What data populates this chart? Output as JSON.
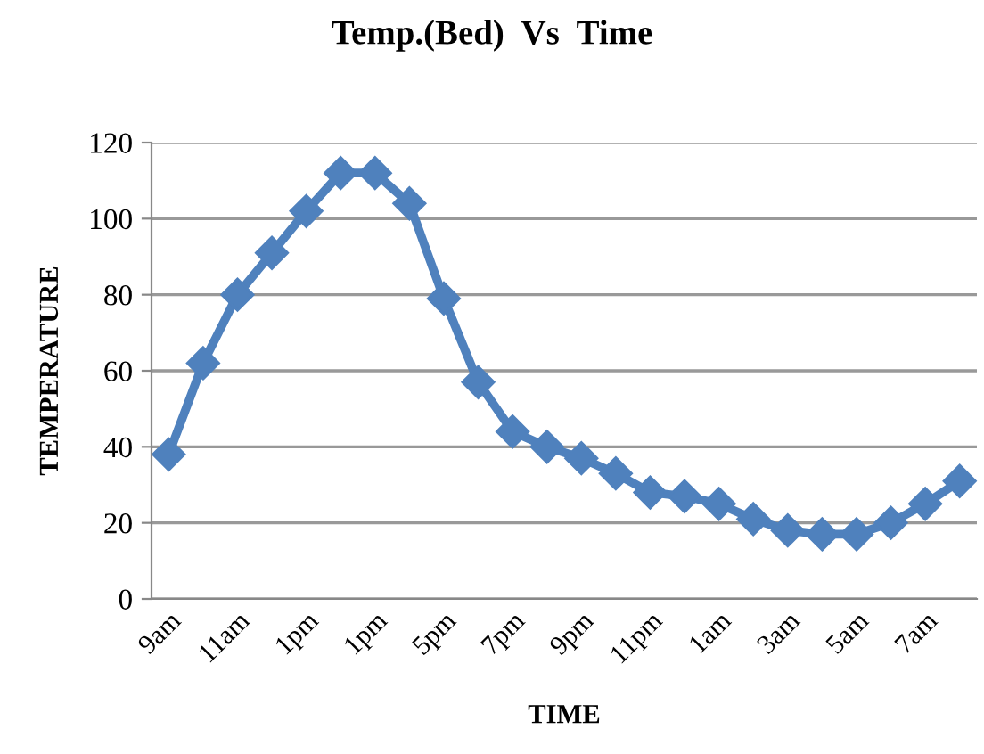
{
  "chart_data": {
    "type": "line",
    "title": "Temp.(Bed)  Vs  Time",
    "xlabel": "TIME",
    "ylabel": "TEMPERATURE",
    "categories": [
      "9am",
      null,
      "11am",
      null,
      "1pm",
      null,
      "1pm",
      null,
      "5pm",
      null,
      "7pm",
      null,
      "9pm",
      null,
      "11pm",
      null,
      "1am",
      null,
      "3am",
      null,
      "5am",
      null,
      "7am",
      null
    ],
    "series": [
      {
        "color": "#4f81bd",
        "values": [
          38,
          62,
          80,
          91,
          102,
          112,
          112,
          104,
          79,
          57,
          44,
          40,
          37,
          33,
          28,
          27,
          25,
          21,
          18,
          17,
          17,
          20,
          25,
          31
        ]
      }
    ],
    "ylim": [
      0,
      120
    ],
    "yticks": [
      0,
      20,
      40,
      60,
      80,
      100,
      120
    ],
    "grid": "y",
    "marker": "diamond",
    "line_style": "solid",
    "legend": false
  }
}
